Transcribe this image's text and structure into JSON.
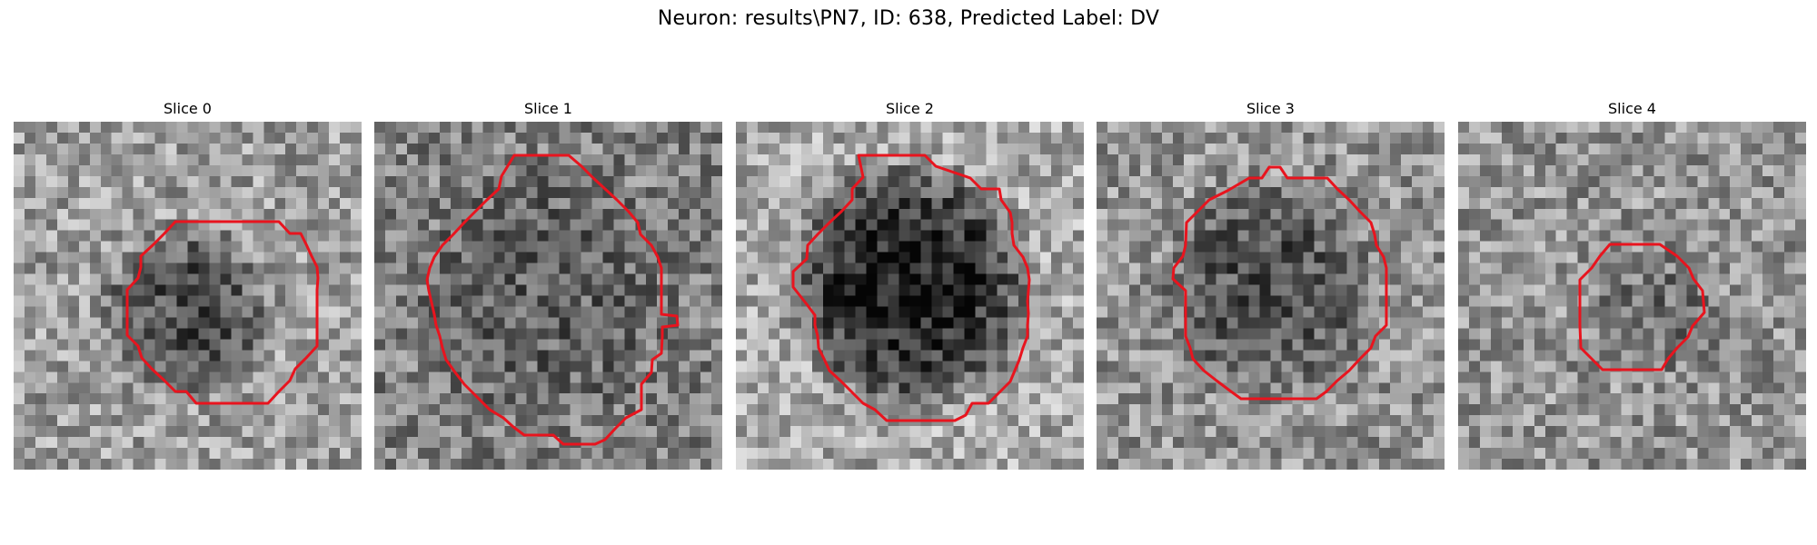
{
  "figure": {
    "title": "Neuron: results\\PN7, ID: 638, Predicted Label: DV",
    "grid_size": 32,
    "contour_color": "#e8141e",
    "colormap": "grayscale",
    "slices": [
      {
        "title": "Slice 0",
        "seed": 11,
        "base": 0.62,
        "mask_radius": 0.27,
        "mask_cx": 0.5,
        "mask_cy": 0.55,
        "inner": 0.3
      },
      {
        "title": "Slice 1",
        "seed": 23,
        "base": 0.5,
        "mask_radius": 0.4,
        "mask_cx": 0.49,
        "mask_cy": 0.49,
        "inner": 0.38
      },
      {
        "title": "Slice 2",
        "seed": 37,
        "base": 0.66,
        "mask_radius": 0.38,
        "mask_cx": 0.5,
        "mask_cy": 0.47,
        "inner": 0.12
      },
      {
        "title": "Slice 3",
        "seed": 51,
        "base": 0.58,
        "mask_radius": 0.34,
        "mask_cx": 0.5,
        "mask_cy": 0.48,
        "inner": 0.32
      },
      {
        "title": "Slice 4",
        "seed": 73,
        "base": 0.58,
        "mask_radius": 0.21,
        "mask_cx": 0.57,
        "mask_cy": 0.55,
        "inner": 0.45
      }
    ]
  }
}
